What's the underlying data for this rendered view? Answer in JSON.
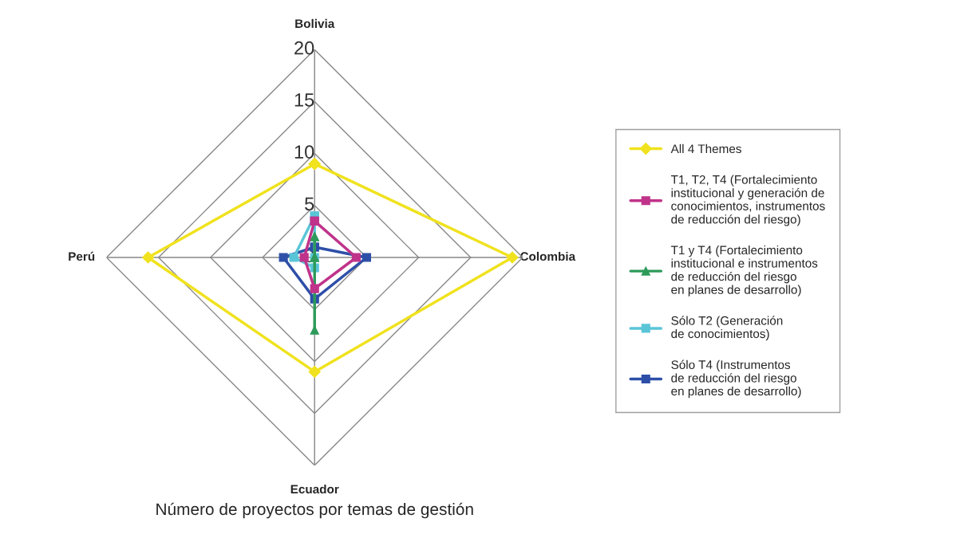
{
  "chart_data": {
    "type": "radar",
    "title": "Número de proyectos por temas de gestión",
    "categories": [
      "Bolivia",
      "Colombia",
      "Ecuador",
      "Perú"
    ],
    "ylim": [
      0,
      20
    ],
    "yticks": [
      0,
      5,
      10,
      15,
      20
    ],
    "grid": true,
    "legend": "right",
    "series": [
      {
        "name": "All 4 Themes",
        "color": "#f0e21e",
        "marker": "diamond",
        "values": [
          9,
          19,
          11,
          16
        ]
      },
      {
        "name": "T1, T2, T4 (Fortalecimiento\ninstitucional y generación de\nconocimientos, instrumentos\nde reducción del riesgo)",
        "color": "#c0338a",
        "marker": "square",
        "values": [
          3.5,
          4,
          3,
          1
        ]
      },
      {
        "name": "T1 y T4 (Fortalecimiento\ninstitucional e instrumentos\nde reducción del riesgo\nen planes de desarrollo)",
        "color": "#2e9a5a",
        "marker": "triangle",
        "values": [
          2,
          0,
          7,
          0
        ]
      },
      {
        "name": "Sólo T2 (Generación\nde conocimientos)",
        "color": "#5bc5d8",
        "marker": "square",
        "values": [
          4,
          0,
          1,
          2
        ]
      },
      {
        "name": "Sólo T4 (Instrumentos\nde reducción del riesgo\nen planes de desarrollo)",
        "color": "#2d4fa8",
        "marker": "square",
        "values": [
          1,
          5,
          4,
          3
        ]
      }
    ]
  }
}
